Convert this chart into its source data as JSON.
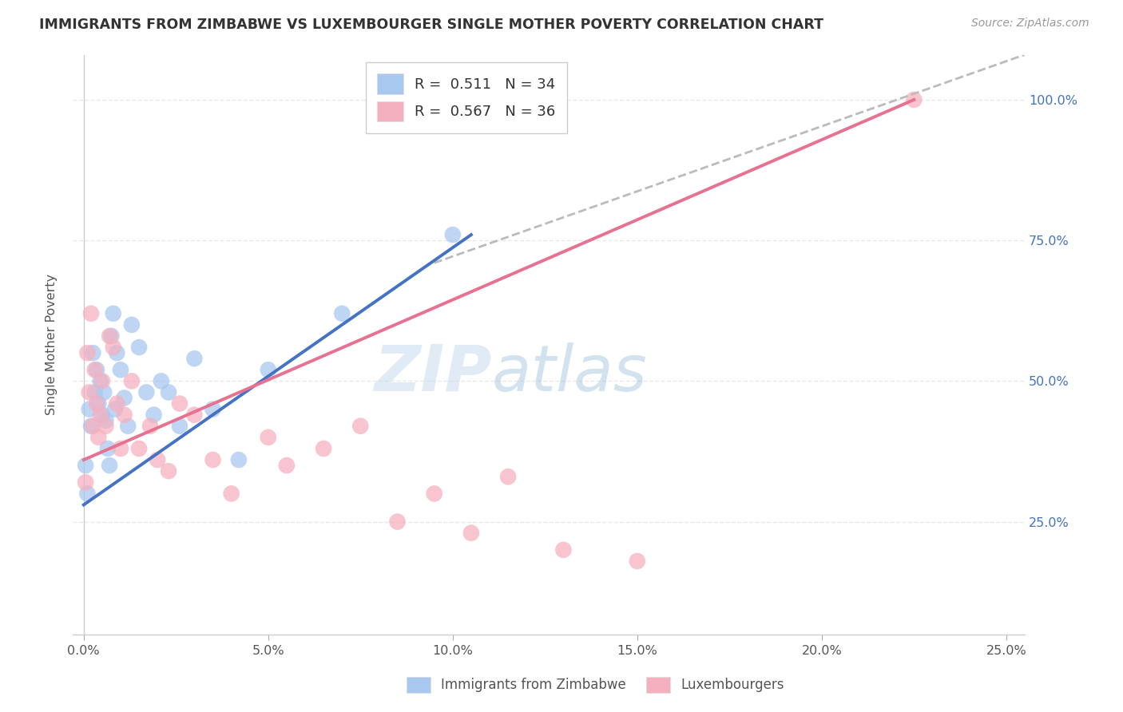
{
  "title": "IMMIGRANTS FROM ZIMBABWE VS LUXEMBOURGER SINGLE MOTHER POVERTY CORRELATION CHART",
  "source": "Source: ZipAtlas.com",
  "ylabel": "Single Mother Poverty",
  "x_tick_labels": [
    "0.0%",
    "5.0%",
    "10.0%",
    "15.0%",
    "20.0%",
    "25.0%"
  ],
  "x_tick_vals": [
    0,
    5,
    10,
    15,
    20,
    25
  ],
  "y_tick_labels": [
    "25.0%",
    "50.0%",
    "75.0%",
    "100.0%"
  ],
  "y_tick_vals": [
    25,
    50,
    75,
    100
  ],
  "xlim": [
    -0.3,
    25.5
  ],
  "ylim": [
    5,
    108
  ],
  "legend_label1": "R =  0.511   N = 34",
  "legend_label2": "R =  0.567   N = 36",
  "legend_bottom_label1": "Immigrants from Zimbabwe",
  "legend_bottom_label2": "Luxembourgers",
  "blue_color": "#A8C8F0",
  "pink_color": "#F5B0C0",
  "blue_line_color": "#4472C4",
  "pink_line_color": "#E87090",
  "dashed_line_color": "#BBBBBB",
  "blue_scatter_x": [
    0.05,
    0.1,
    0.15,
    0.2,
    0.25,
    0.3,
    0.35,
    0.4,
    0.45,
    0.5,
    0.55,
    0.6,
    0.65,
    0.7,
    0.75,
    0.8,
    0.85,
    0.9,
    1.0,
    1.1,
    1.2,
    1.3,
    1.5,
    1.7,
    1.9,
    2.1,
    2.3,
    2.6,
    3.0,
    3.5,
    4.2,
    5.0,
    7.0,
    10.0
  ],
  "blue_scatter_y": [
    35,
    30,
    45,
    42,
    55,
    48,
    52,
    46,
    50,
    44,
    48,
    43,
    38,
    35,
    58,
    62,
    45,
    55,
    52,
    47,
    42,
    60,
    56,
    48,
    44,
    50,
    48,
    42,
    54,
    45,
    36,
    52,
    62,
    76
  ],
  "pink_scatter_x": [
    0.05,
    0.1,
    0.15,
    0.2,
    0.25,
    0.3,
    0.35,
    0.4,
    0.45,
    0.5,
    0.6,
    0.7,
    0.8,
    0.9,
    1.0,
    1.1,
    1.3,
    1.5,
    1.8,
    2.0,
    2.3,
    2.6,
    3.0,
    3.5,
    4.0,
    5.0,
    5.5,
    6.5,
    7.5,
    8.5,
    9.5,
    10.5,
    11.5,
    13.0,
    15.0,
    22.5
  ],
  "pink_scatter_y": [
    32,
    55,
    48,
    62,
    42,
    52,
    46,
    40,
    44,
    50,
    42,
    58,
    56,
    46,
    38,
    44,
    50,
    38,
    42,
    36,
    34,
    46,
    44,
    36,
    30,
    40,
    35,
    38,
    42,
    25,
    30,
    23,
    33,
    20,
    18,
    100
  ],
  "blue_line_x": [
    0,
    10.5
  ],
  "blue_line_y": [
    28,
    76
  ],
  "pink_line_x": [
    0,
    22.5
  ],
  "pink_line_y": [
    36,
    100
  ],
  "dashed_line_x": [
    9.5,
    25.5
  ],
  "dashed_line_y": [
    71,
    108
  ],
  "watermark_zip": "ZIP",
  "watermark_atlas": "atlas",
  "background_color": "#FFFFFF",
  "grid_color": "#E8E8E8"
}
